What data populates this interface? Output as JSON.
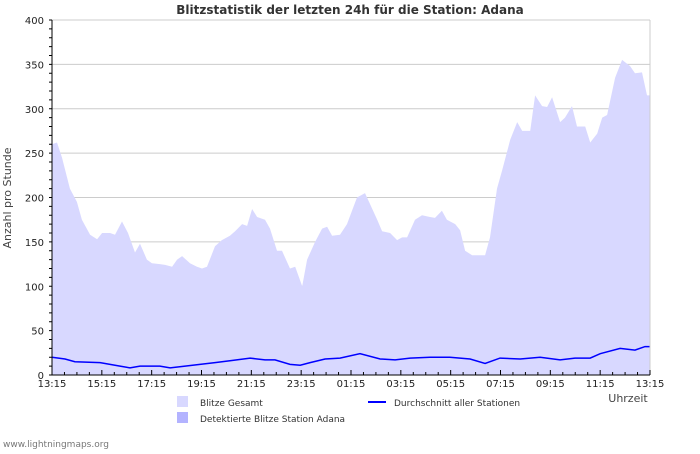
{
  "chart_data": {
    "type": "area",
    "title": "Blitzstatistik der letzten 24h für die Station: Adana",
    "xlabel": "Uhrzeit",
    "ylabel": "Anzahl pro Stunde",
    "ylim": [
      0,
      400
    ],
    "yticks": [
      0,
      50,
      100,
      150,
      200,
      250,
      300,
      350,
      400
    ],
    "xticks": [
      "13:15",
      "15:15",
      "17:15",
      "19:15",
      "21:15",
      "23:15",
      "01:15",
      "03:15",
      "05:15",
      "07:15",
      "09:15",
      "11:15",
      "13:15"
    ],
    "x_unit": "hours since 13:15",
    "grid": true,
    "series": [
      {
        "name": "Blitze Gesamt",
        "color": "#d8d8ff",
        "kind": "area",
        "points": [
          [
            0,
            260
          ],
          [
            0.2,
            262
          ],
          [
            0.4,
            245
          ],
          [
            0.72,
            210
          ],
          [
            1,
            195
          ],
          [
            1.2,
            175
          ],
          [
            1.53,
            158
          ],
          [
            1.81,
            153
          ],
          [
            2.01,
            160
          ],
          [
            2.33,
            160
          ],
          [
            2.53,
            158
          ],
          [
            2.81,
            173
          ],
          [
            3.05,
            160
          ],
          [
            3.33,
            138
          ],
          [
            3.53,
            148
          ],
          [
            3.81,
            130
          ],
          [
            4.01,
            126
          ],
          [
            4.33,
            125
          ],
          [
            4.54,
            124
          ],
          [
            4.82,
            122
          ],
          [
            5.02,
            130
          ],
          [
            5.22,
            134
          ],
          [
            5.54,
            126
          ],
          [
            5.82,
            122
          ],
          [
            6.02,
            120
          ],
          [
            6.22,
            122
          ],
          [
            6.54,
            145
          ],
          [
            6.82,
            152
          ],
          [
            7.14,
            157
          ],
          [
            7.35,
            162
          ],
          [
            7.63,
            170
          ],
          [
            7.83,
            168
          ],
          [
            8.03,
            187
          ],
          [
            8.23,
            178
          ],
          [
            8.55,
            175
          ],
          [
            8.75,
            165
          ],
          [
            9.03,
            140
          ],
          [
            9.23,
            140
          ],
          [
            9.55,
            120
          ],
          [
            9.76,
            122
          ],
          [
            10.04,
            100
          ],
          [
            10.24,
            130
          ],
          [
            10.56,
            150
          ],
          [
            10.84,
            165
          ],
          [
            11.04,
            167
          ],
          [
            11.24,
            157
          ],
          [
            11.56,
            158
          ],
          [
            11.84,
            170
          ],
          [
            12.04,
            185
          ],
          [
            12.24,
            200
          ],
          [
            12.56,
            205
          ],
          [
            12.76,
            193
          ],
          [
            13.05,
            175
          ],
          [
            13.25,
            162
          ],
          [
            13.57,
            160
          ],
          [
            13.85,
            152
          ],
          [
            14.05,
            155
          ],
          [
            14.25,
            155
          ],
          [
            14.57,
            175
          ],
          [
            14.85,
            180
          ],
          [
            15.17,
            178
          ],
          [
            15.37,
            177
          ],
          [
            15.65,
            185
          ],
          [
            15.85,
            175
          ],
          [
            16.18,
            170
          ],
          [
            16.38,
            163
          ],
          [
            16.58,
            140
          ],
          [
            16.86,
            135
          ],
          [
            17.18,
            135
          ],
          [
            17.38,
            135
          ],
          [
            17.58,
            155
          ],
          [
            17.86,
            210
          ],
          [
            18.06,
            230
          ],
          [
            18.39,
            265
          ],
          [
            18.67,
            285
          ],
          [
            18.87,
            275
          ],
          [
            19.19,
            275
          ],
          [
            19.39,
            315
          ],
          [
            19.67,
            303
          ],
          [
            19.87,
            302
          ],
          [
            20.07,
            313
          ],
          [
            20.39,
            285
          ],
          [
            20.59,
            290
          ],
          [
            20.87,
            303
          ],
          [
            21.07,
            280
          ],
          [
            21.4,
            280
          ],
          [
            21.6,
            262
          ],
          [
            21.88,
            272
          ],
          [
            22.08,
            290
          ],
          [
            22.28,
            293
          ],
          [
            22.6,
            335
          ],
          [
            22.88,
            355
          ],
          [
            23.2,
            348
          ],
          [
            23.4,
            340
          ],
          [
            23.68,
            341
          ],
          [
            23.88,
            315
          ],
          [
            24,
            315
          ]
        ]
      },
      {
        "name": "Detektierte Blitze Station Adana",
        "color": "#b3b3ff",
        "kind": "area",
        "points": []
      },
      {
        "name": "Durchschnitt aller Stationen",
        "color": "#0000ff",
        "kind": "line",
        "points": [
          [
            0,
            20
          ],
          [
            0.52,
            18
          ],
          [
            0.92,
            15
          ],
          [
            1.93,
            14
          ],
          [
            2.73,
            10
          ],
          [
            3.13,
            8
          ],
          [
            3.53,
            10
          ],
          [
            4.33,
            10
          ],
          [
            4.74,
            8
          ],
          [
            5.34,
            10
          ],
          [
            5.94,
            12
          ],
          [
            6.54,
            14
          ],
          [
            7.14,
            16
          ],
          [
            7.95,
            19
          ],
          [
            8.55,
            17
          ],
          [
            8.95,
            17
          ],
          [
            9.55,
            12
          ],
          [
            9.96,
            11
          ],
          [
            10.36,
            14
          ],
          [
            10.96,
            18
          ],
          [
            11.56,
            19
          ],
          [
            12.36,
            24
          ],
          [
            13.17,
            18
          ],
          [
            13.77,
            17
          ],
          [
            14.37,
            19
          ],
          [
            15.17,
            20
          ],
          [
            15.97,
            20
          ],
          [
            16.78,
            18
          ],
          [
            17.38,
            13
          ],
          [
            17.98,
            19
          ],
          [
            18.79,
            18
          ],
          [
            19.59,
            20
          ],
          [
            20.39,
            17
          ],
          [
            20.99,
            19
          ],
          [
            21.6,
            19
          ],
          [
            22,
            24
          ],
          [
            22.8,
            30
          ],
          [
            23.4,
            28
          ],
          [
            23.8,
            32
          ],
          [
            24,
            32
          ]
        ]
      }
    ]
  },
  "legend": {
    "item1": "Blitze Gesamt",
    "item2": "Detektierte Blitze Station Adana",
    "item3": "Durchschnitt aller Stationen"
  },
  "footer": "www.lightningmaps.org"
}
